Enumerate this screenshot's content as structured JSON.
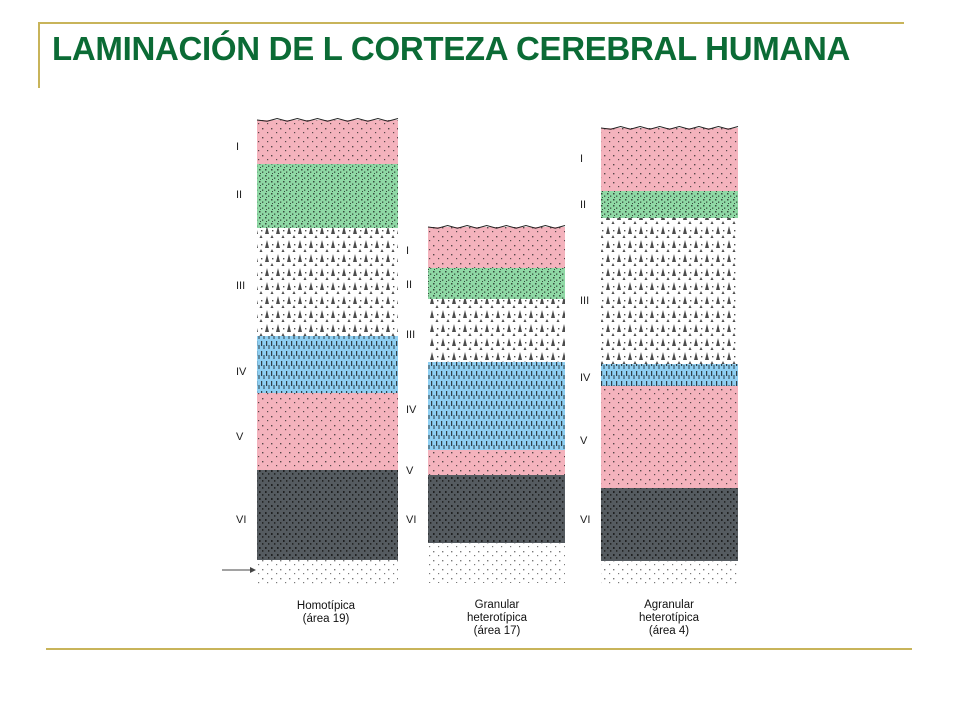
{
  "title": "LAMINACIÓN DE L CORTEZA CEREBRAL HUMANA",
  "colors": {
    "accent_title": "#0b6b35",
    "frame": "#c8b45a",
    "layer_pink": "#f4b3bd",
    "layer_green": "#8fd9a5",
    "layer_blue": "#8ecff2",
    "layer_gray": "#555b60"
  },
  "columns": [
    {
      "id": "homotipica",
      "caption": [
        "Homotípica",
        "(área 19)"
      ],
      "layers": [
        {
          "label": "I",
          "fill": "pink"
        },
        {
          "label": "II",
          "fill": "green"
        },
        {
          "label": "III",
          "fill": "white"
        },
        {
          "label": "IV",
          "fill": "blue"
        },
        {
          "label": "V",
          "fill": "pink"
        },
        {
          "label": "VI",
          "fill": "gray"
        }
      ]
    },
    {
      "id": "granular",
      "caption": [
        "Granular",
        "heterotípica",
        "(área 17)"
      ],
      "layers": [
        {
          "label": "I",
          "fill": "pink"
        },
        {
          "label": "II",
          "fill": "green"
        },
        {
          "label": "III",
          "fill": "white"
        },
        {
          "label": "IV",
          "fill": "blue"
        },
        {
          "label": "V",
          "fill": "pink"
        },
        {
          "label": "VI",
          "fill": "gray"
        }
      ]
    },
    {
      "id": "agranular",
      "caption": [
        "Agranular",
        "heterotípica",
        "(área 4)"
      ],
      "layers": [
        {
          "label": "I",
          "fill": "pink"
        },
        {
          "label": "II",
          "fill": "green"
        },
        {
          "label": "III",
          "fill": "white"
        },
        {
          "label": "IV",
          "fill": "blue"
        },
        {
          "label": "V",
          "fill": "pink"
        },
        {
          "label": "VI",
          "fill": "gray"
        }
      ]
    }
  ]
}
